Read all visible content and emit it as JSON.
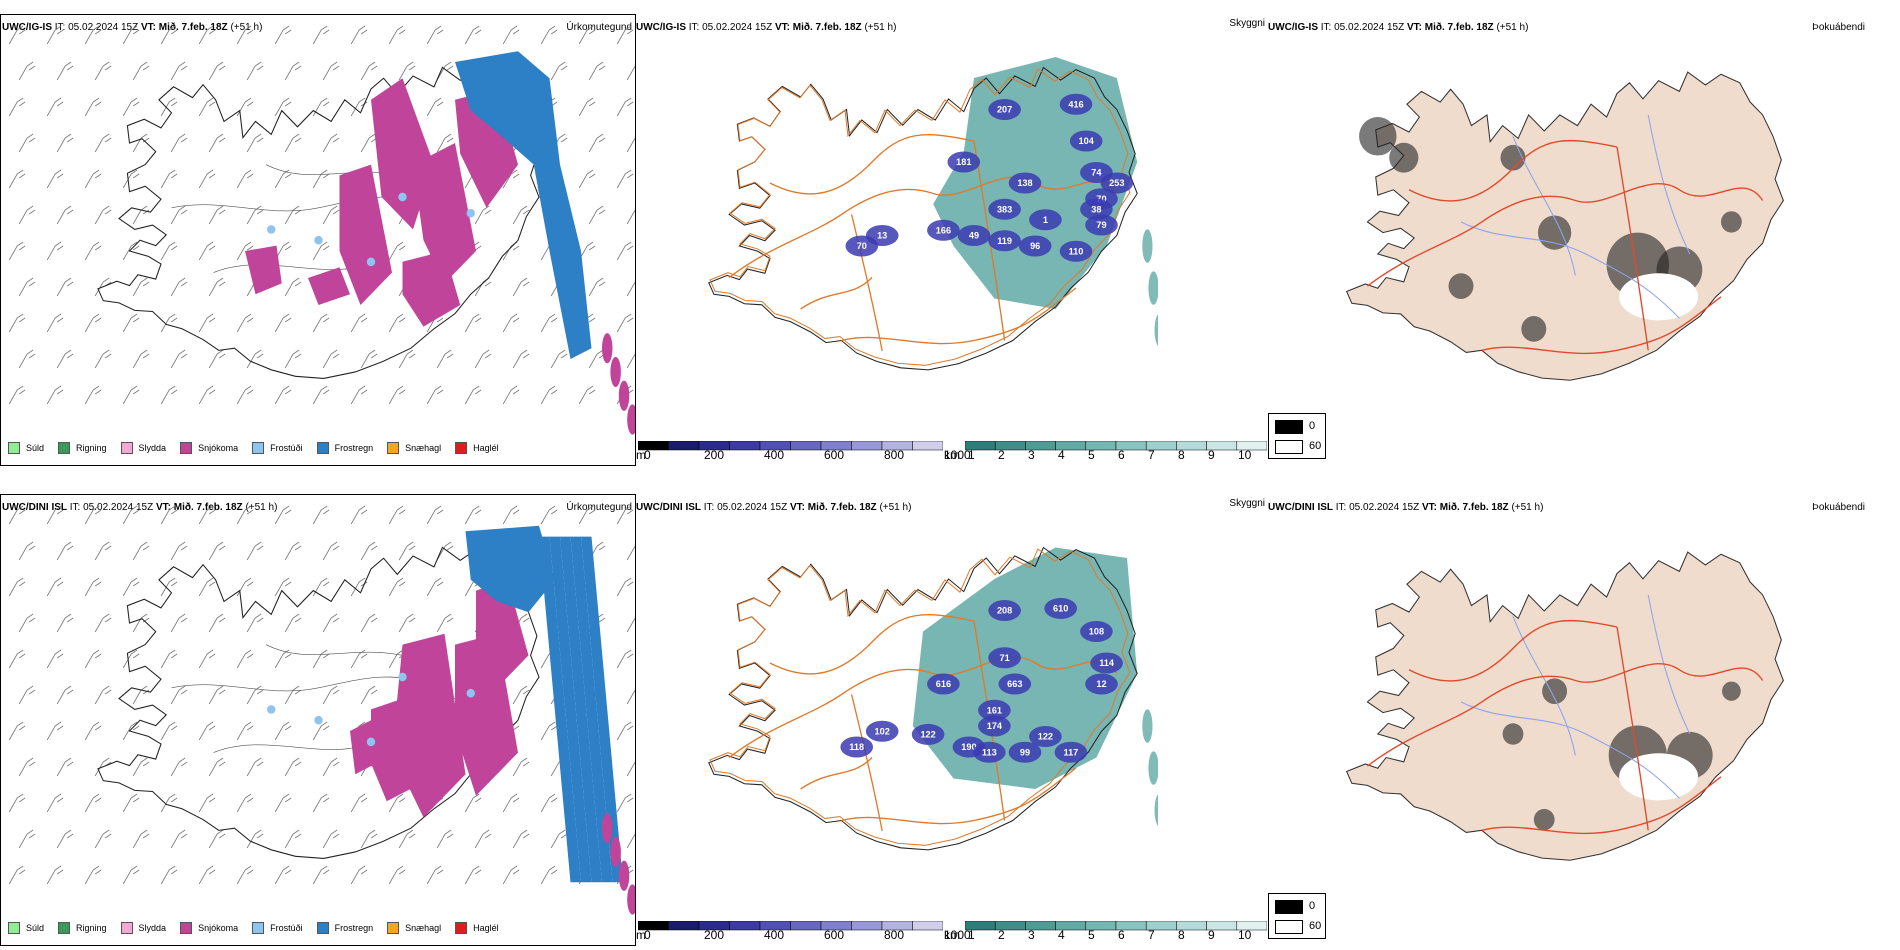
{
  "rows": [
    {
      "model": "UWC/IG-IS",
      "it_label": "IT:",
      "it_value": "05.02.2024 15Z",
      "vt_label": "VT:",
      "vt_value": "Mið. 7.feb. 18Z",
      "lead": "(+51 h)",
      "labels_cloud": [
        "207",
        "416",
        "104",
        "74",
        "70",
        "253",
        "181",
        "138",
        "383",
        "38",
        "79",
        "1",
        "49",
        "119",
        "96",
        "110",
        "13",
        "70",
        "166"
      ]
    },
    {
      "model": "UWC/DINI ISL",
      "it_label": "IT:",
      "it_value": "05.02.2024 15Z",
      "vt_label": "VT:",
      "vt_value": "Mið. 7.feb. 18Z",
      "lead": "(+51 h)",
      "labels_cloud": [
        "208",
        "610",
        "108",
        "114",
        "12",
        "71",
        "616",
        "663",
        "161",
        "174",
        "122",
        "190",
        "113",
        "99",
        "117",
        "118",
        "102",
        "122"
      ]
    }
  ],
  "panels": {
    "precip_type": "Úrkomutegund",
    "visibility": "Skyggni",
    "fog": "Þokuábendi"
  },
  "precip_legend": [
    {
      "label": "Súld",
      "color": "#90ee90"
    },
    {
      "label": "Rigning",
      "color": "#3a9a5a"
    },
    {
      "label": "Slydda",
      "color": "#f4a8d4"
    },
    {
      "label": "Snjókoma",
      "color": "#c0449a"
    },
    {
      "label": "Frostúði",
      "color": "#8fc4f0"
    },
    {
      "label": "Frostregn",
      "color": "#2d7fc6"
    },
    {
      "label": "Snæhagl",
      "color": "#f5a623"
    },
    {
      "label": "Haglél",
      "color": "#e01b1b"
    }
  ],
  "cloud_bar": {
    "unit": "m",
    "ticks": [
      "0",
      "200",
      "400",
      "600",
      "800",
      "1000"
    ],
    "colors": [
      "#000000",
      "#1a1a6e",
      "#2b2b8f",
      "#3b3ba5",
      "#5151b5",
      "#6767c0",
      "#7f7fcb",
      "#9898d6",
      "#b3b3e0",
      "#cfcfea"
    ]
  },
  "vis_bar": {
    "unit": "km",
    "ticks": [
      "1",
      "2",
      "3",
      "4",
      "5",
      "6",
      "7",
      "8",
      "9",
      "10"
    ],
    "colors": [
      "#2e7d7a",
      "#3f8c88",
      "#519b97",
      "#63a9a5",
      "#76b6b3",
      "#8ac3c0",
      "#9fd0cd",
      "#b4dbd9",
      "#cae6e4",
      "#e0f1f0"
    ]
  },
  "fog_legend": {
    "black": "0",
    "white": "60"
  },
  "colors": {
    "snow": "#c0449a",
    "frostregn": "#2d7fc6",
    "frostudi": "#8fc4f0",
    "vis": "#4a9e98",
    "cloud": "#3b3bb0",
    "roads": "#e07a2a",
    "fog_land": "#f0dccd",
    "fog_roads": "#e04a2a",
    "fog_rivers": "#8aa4ef"
  }
}
